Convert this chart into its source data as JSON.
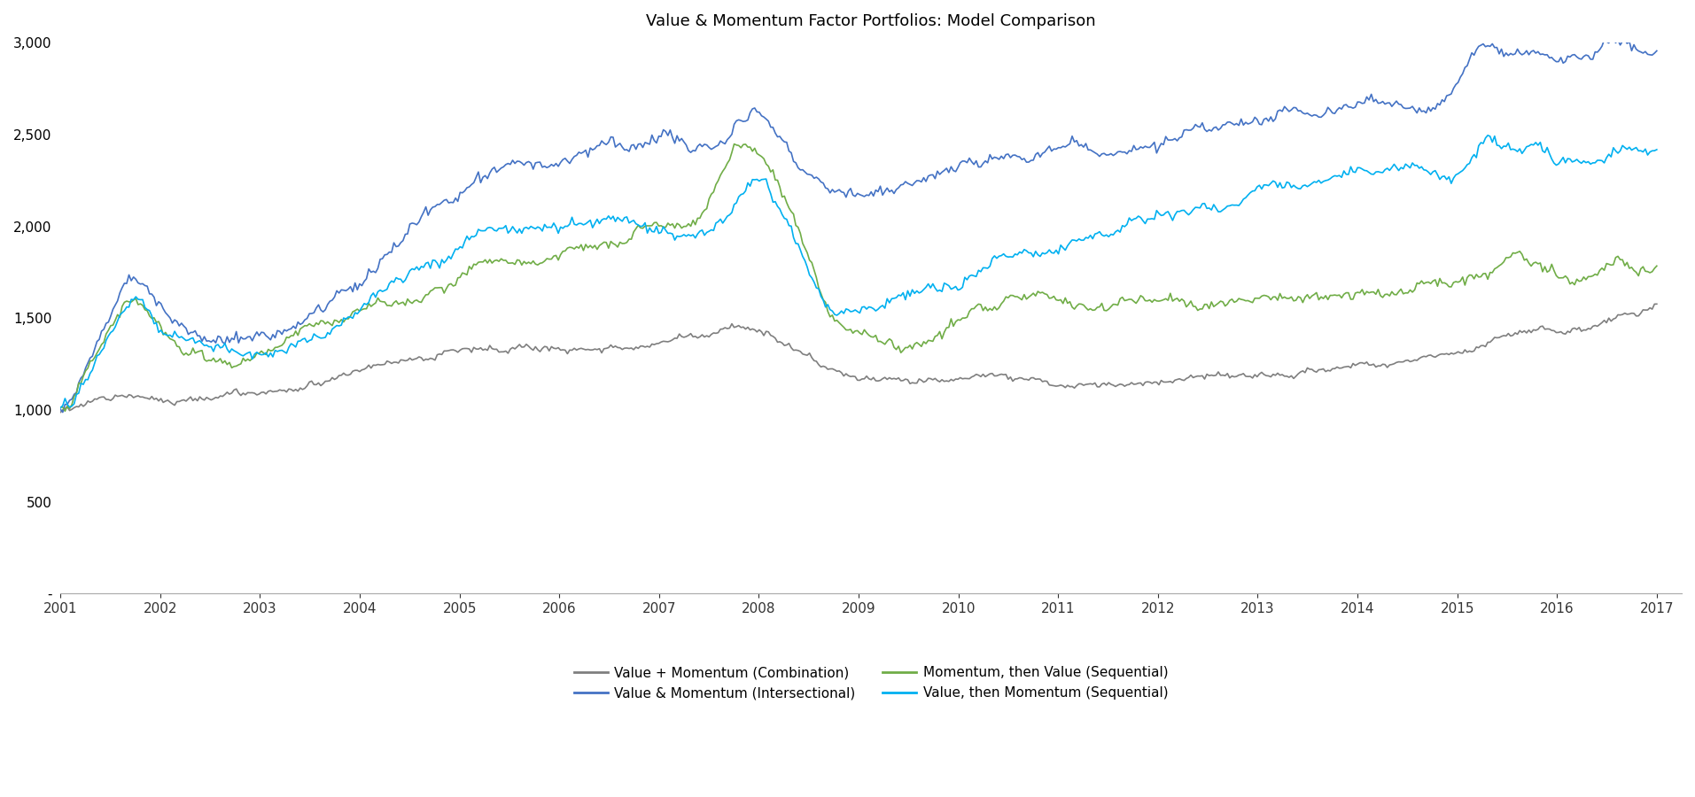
{
  "title": "Value & Momentum Factor Portfolios: Model Comparison",
  "title_fontsize": 13,
  "ylim": [
    0,
    3000
  ],
  "yticks": [
    0,
    500,
    1000,
    1500,
    2000,
    2500,
    3000
  ],
  "ytick_labels": [
    "-",
    "500",
    "1,000",
    "1,500",
    "2,000",
    "2,500",
    "3,000"
  ],
  "xlim": [
    2001.0,
    2017.25
  ],
  "xticks": [
    2001,
    2002,
    2003,
    2004,
    2005,
    2006,
    2007,
    2008,
    2009,
    2010,
    2011,
    2012,
    2013,
    2014,
    2015,
    2016,
    2017
  ],
  "colors": {
    "combination": "#7F7F7F",
    "intersectional": "#4472C4",
    "momentum_then_value": "#70AD47",
    "value_then_momentum": "#00B0F0"
  },
  "legend_labels": [
    "Value + Momentum (Combination)",
    "Value & Momentum (Intersectional)",
    "Momentum, then Value (Sequential)",
    "Value, then Momentum (Sequential)"
  ],
  "background_color": "#ffffff",
  "line_width": 1.2
}
